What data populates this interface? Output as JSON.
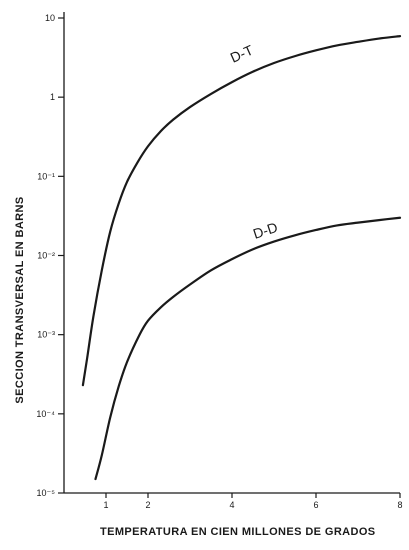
{
  "chart_data": {
    "type": "line",
    "title": "",
    "xlabel": "TEMPERATURA  EN CIEN MILLONES  DE GRADOS",
    "ylabel": "SECCION TRANSVERSAL EN BARNS",
    "y_scale": "log",
    "xlim": [
      0,
      8
    ],
    "ylim": [
      1e-05,
      10
    ],
    "grid": false,
    "legend": "none",
    "x_ticks": [
      1,
      2,
      4,
      6,
      8
    ],
    "x_tick_labels": [
      "1",
      "2",
      "4",
      "6",
      "8"
    ],
    "y_ticks": [
      1e-05,
      0.0001,
      0.001,
      0.01,
      0.1,
      1,
      10
    ],
    "y_tick_labels": [
      "10⁻⁵",
      "10⁻⁴",
      "10⁻³",
      "10⁻²",
      "10⁻¹",
      "1",
      "10"
    ],
    "series": [
      {
        "name": "D-T",
        "color": "#1a1a1a",
        "x": [
          0.45,
          0.55,
          0.7,
          0.9,
          1.1,
          1.3,
          1.5,
          1.75,
          2.0,
          2.3,
          2.6,
          3.0,
          3.5,
          4.0,
          4.5,
          5.0,
          5.5,
          6.0,
          6.5,
          7.0,
          7.5,
          8.0
        ],
        "y": [
          0.00023,
          0.0005,
          0.0017,
          0.0065,
          0.02,
          0.045,
          0.085,
          0.15,
          0.24,
          0.37,
          0.52,
          0.75,
          1.1,
          1.55,
          2.1,
          2.7,
          3.3,
          3.9,
          4.5,
          5.0,
          5.5,
          5.9
        ]
      },
      {
        "name": "D-D",
        "color": "#1a1a1a",
        "x": [
          0.75,
          0.9,
          1.1,
          1.3,
          1.5,
          1.8,
          2.0,
          2.3,
          2.6,
          3.0,
          3.5,
          4.0,
          4.5,
          5.0,
          5.5,
          6.0,
          6.5,
          7.0,
          7.5,
          8.0
        ],
        "y": [
          1.5e-05,
          3e-05,
          9e-05,
          0.00022,
          0.00045,
          0.001,
          0.0015,
          0.0022,
          0.003,
          0.0043,
          0.0065,
          0.009,
          0.012,
          0.015,
          0.018,
          0.021,
          0.024,
          0.026,
          0.028,
          0.03
        ]
      }
    ]
  }
}
